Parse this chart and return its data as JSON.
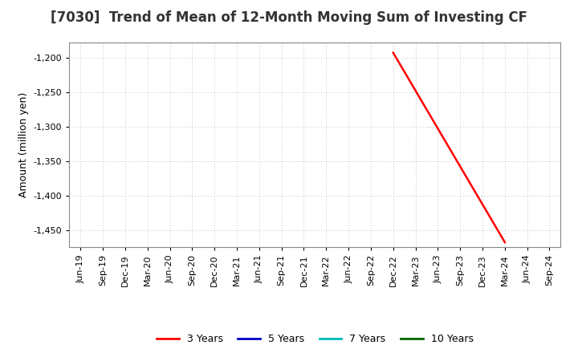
{
  "title": "[7030]  Trend of Mean of 12-Month Moving Sum of Investing CF",
  "ylabel": "Amount (million yen)",
  "ylim": [
    -1475,
    -1178
  ],
  "yticks": [
    -1450,
    -1400,
    -1350,
    -1300,
    -1250,
    -1200
  ],
  "line_3y": {
    "x": [
      "Dec-22",
      "Mar-24"
    ],
    "y": [
      -1193,
      -1468
    ],
    "color": "#FF0000",
    "label": "3 Years",
    "linewidth": 1.8
  },
  "legend": [
    {
      "label": "3 Years",
      "color": "#FF0000"
    },
    {
      "label": "5 Years",
      "color": "#0000CC"
    },
    {
      "label": "7 Years",
      "color": "#00BBBB"
    },
    {
      "label": "10 Years",
      "color": "#006600"
    }
  ],
  "xtick_labels": [
    "Jun-19",
    "Sep-19",
    "Dec-19",
    "Mar-20",
    "Jun-20",
    "Sep-20",
    "Dec-20",
    "Mar-21",
    "Jun-21",
    "Sep-21",
    "Dec-21",
    "Mar-22",
    "Jun-22",
    "Sep-22",
    "Dec-22",
    "Mar-23",
    "Jun-23",
    "Sep-23",
    "Dec-23",
    "Mar-24",
    "Jun-24",
    "Sep-24"
  ],
  "background_color": "#FFFFFF",
  "grid_color": "#AAAAAA",
  "title_fontsize": 12,
  "axis_label_fontsize": 9,
  "tick_fontsize": 8,
  "legend_fontsize": 9
}
